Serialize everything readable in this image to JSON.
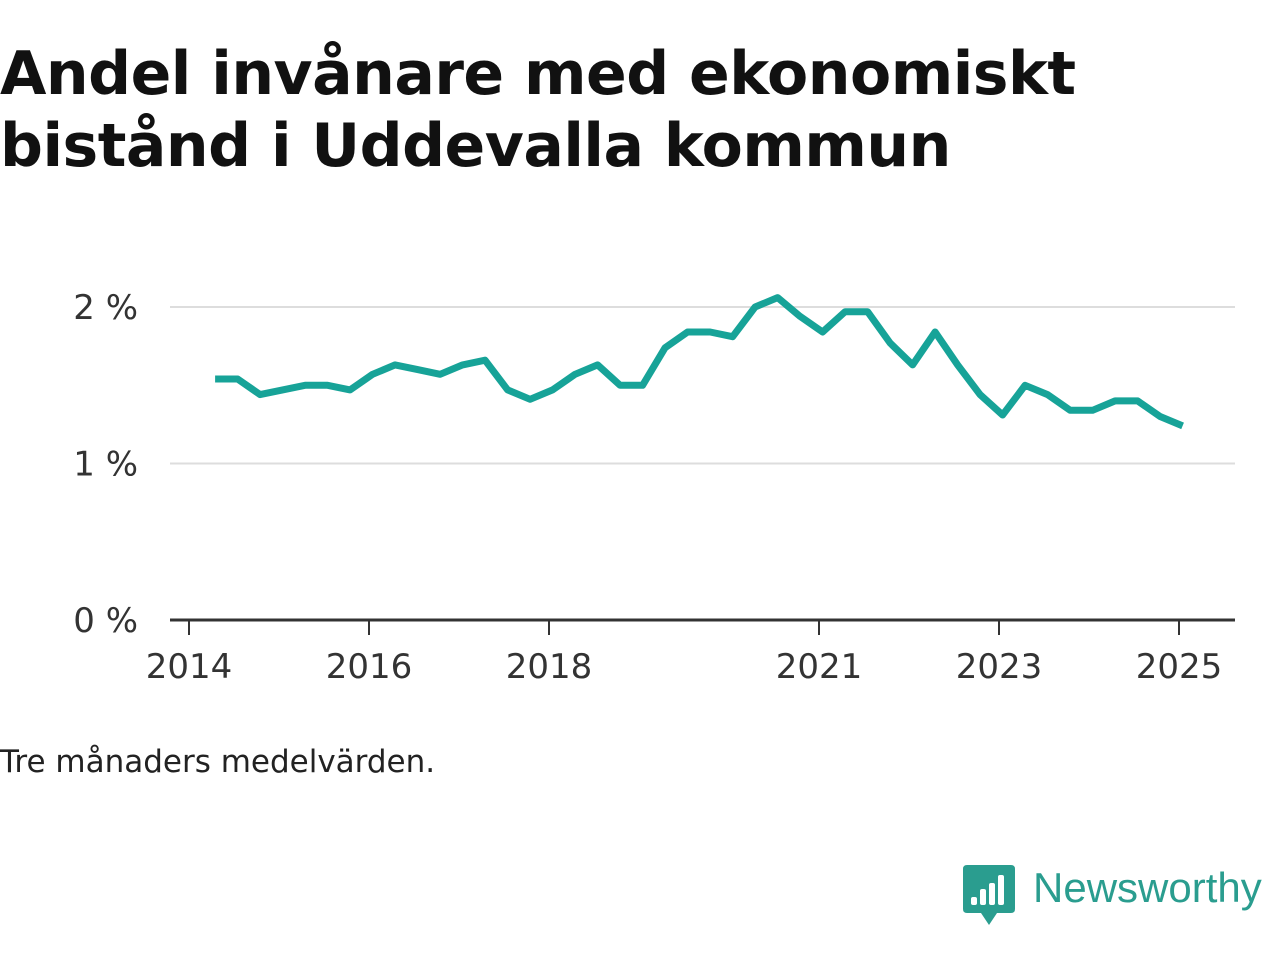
{
  "chart_data": {
    "type": "line",
    "title": "Andel invånare med ekonomiskt bistånd i Uddevalla kommun",
    "subtitle": "",
    "xlabel": "",
    "ylabel": "",
    "caption": "Tre månaders medelvärden.",
    "xlim": [
      2014,
      2025.33
    ],
    "ylim": [
      0,
      2
    ],
    "x_ticks": [
      2014,
      2016,
      2018,
      2021,
      2023,
      2025
    ],
    "x_tick_labels": [
      "2014",
      "2016",
      "2018",
      "2021",
      "2023",
      "2025"
    ],
    "y_ticks": [
      0,
      1,
      2
    ],
    "y_tick_labels": [
      "0 %",
      "1 %",
      "2 %"
    ],
    "grid": true,
    "line_color": "#17a398",
    "series": [
      {
        "name": "Andel invånare med ekonomiskt bistånd",
        "x": [
          2014.29,
          2014.54,
          2014.79,
          2015.04,
          2015.29,
          2015.54,
          2015.79,
          2016.04,
          2016.29,
          2016.54,
          2016.79,
          2017.04,
          2017.29,
          2017.54,
          2017.79,
          2018.04,
          2018.29,
          2018.54,
          2018.79,
          2019.04,
          2019.29,
          2019.54,
          2019.79,
          2020.04,
          2020.29,
          2020.54,
          2020.79,
          2021.04,
          2021.29,
          2021.54,
          2021.79,
          2022.04,
          2022.29,
          2022.54,
          2022.79,
          2023.04,
          2023.29,
          2023.54,
          2023.79,
          2024.04,
          2024.29,
          2024.54,
          2024.79,
          2025.04
        ],
        "values": [
          1.54,
          1.54,
          1.44,
          1.47,
          1.5,
          1.5,
          1.47,
          1.57,
          1.63,
          1.6,
          1.57,
          1.63,
          1.66,
          1.47,
          1.41,
          1.47,
          1.57,
          1.63,
          1.5,
          1.5,
          1.74,
          1.84,
          1.84,
          1.81,
          2.0,
          2.06,
          1.94,
          1.84,
          1.97,
          1.97,
          1.77,
          1.63,
          1.84,
          1.63,
          1.44,
          1.31,
          1.5,
          1.44,
          1.34,
          1.34,
          1.4,
          1.4,
          1.3,
          1.24
        ]
      }
    ]
  },
  "brand": {
    "name": "Newsworthy",
    "color": "#2a9d8f",
    "icon": "newsworthy-logo-icon"
  }
}
